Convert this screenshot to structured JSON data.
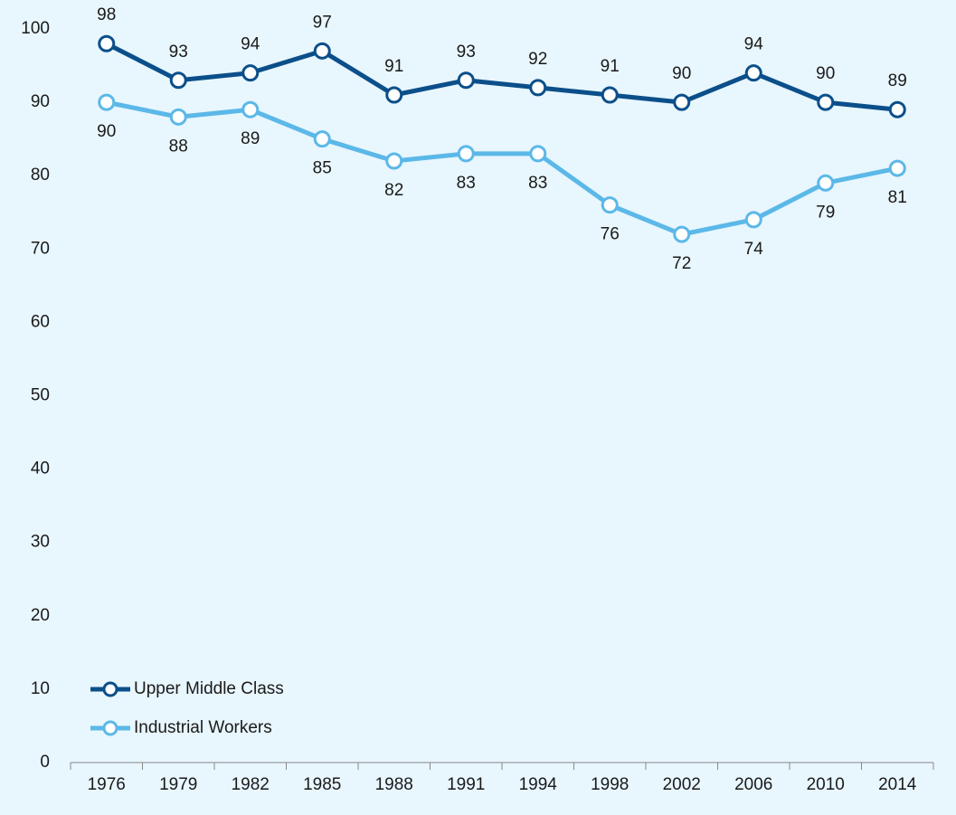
{
  "chart_data": {
    "type": "line",
    "categories": [
      "1976",
      "1979",
      "1982",
      "1985",
      "1988",
      "1991",
      "1994",
      "1998",
      "2002",
      "2006",
      "2010",
      "2014"
    ],
    "series": [
      {
        "name": "Upper Middle Class",
        "color": "#0b4f8a",
        "values": [
          98,
          93,
          94,
          97,
          91,
          93,
          92,
          91,
          90,
          94,
          90,
          89
        ]
      },
      {
        "name": "Industrial Workers",
        "color": "#5bb8e8",
        "values": [
          90,
          88,
          89,
          85,
          82,
          83,
          83,
          76,
          72,
          74,
          79,
          81
        ]
      }
    ],
    "ylim": [
      0,
      100
    ],
    "yticks": [
      0,
      10,
      20,
      30,
      40,
      50,
      60,
      70,
      80,
      90,
      100
    ],
    "grid": false,
    "legend": "lower left"
  }
}
